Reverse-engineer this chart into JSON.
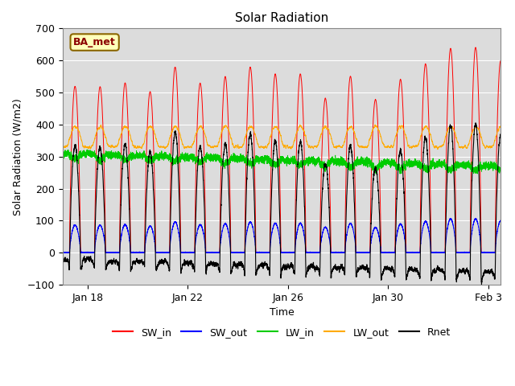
{
  "title": "Solar Radiation",
  "xlabel": "Time",
  "ylabel": "Solar Radiation (W/m2)",
  "ylim": [
    -100,
    700
  ],
  "annotation": "BA_met",
  "legend_labels": [
    "SW_in",
    "SW_out",
    "LW_in",
    "LW_out",
    "Rnet"
  ],
  "colors": {
    "SW_in": "#ff0000",
    "SW_out": "#0000ff",
    "LW_in": "#00cc00",
    "LW_out": "#ffaa00",
    "Rnet": "#000000"
  },
  "background_color": "#dcdcdc",
  "xtick_positions": [
    1,
    5,
    9,
    13,
    17
  ],
  "xtick_labels": [
    "Jan 18",
    "Jan 22",
    "Jan 26",
    "Jan 30",
    "Feb 3"
  ],
  "ytick_positions": [
    -100,
    0,
    100,
    200,
    300,
    400,
    500,
    600,
    700
  ],
  "days": 17.5,
  "points_per_day": 480
}
